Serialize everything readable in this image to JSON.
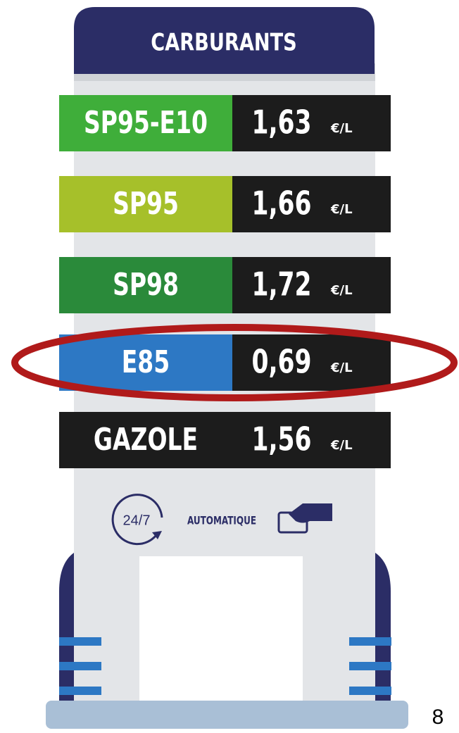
{
  "header": {
    "title": "CARBURANTS"
  },
  "fuels": [
    {
      "name": "SP95-E10",
      "price": "1,63",
      "unit": "€/L"
    },
    {
      "name": "SP95",
      "price": "1,66",
      "unit": "€/L"
    },
    {
      "name": "SP98",
      "price": "1,72",
      "unit": "€/L"
    },
    {
      "name": "E85",
      "price": "0,69",
      "unit": "€/L"
    },
    {
      "name": "GAZOLE",
      "price": "1,56",
      "unit": "€/L"
    }
  ],
  "services": {
    "badge": "24/7",
    "label": "AUTOMATIQUE"
  },
  "page_number": "8"
}
